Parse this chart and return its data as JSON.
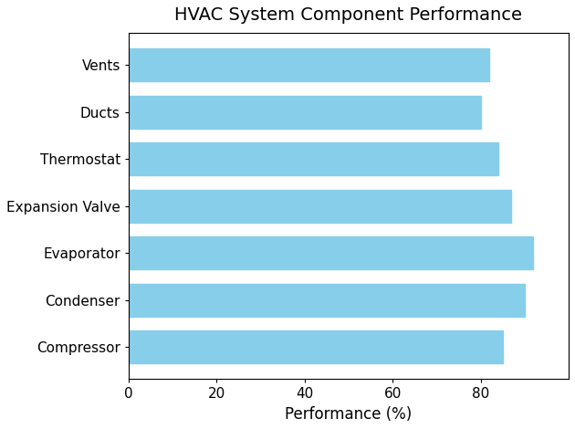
{
  "title": "HVAC System Component Performance",
  "categories": [
    "Compressor",
    "Condenser",
    "Evaporator",
    "Expansion Valve",
    "Thermostat",
    "Ducts",
    "Vents"
  ],
  "values": [
    85,
    90,
    92,
    87,
    84,
    80,
    82
  ],
  "bar_color": "#87CEEB",
  "xlabel": "Performance (%)",
  "xlim": [
    0,
    100
  ],
  "xticks": [
    0,
    20,
    40,
    60,
    80
  ],
  "title_fontsize": 14,
  "label_fontsize": 12,
  "tick_fontsize": 11,
  "background_color": "#ffffff"
}
